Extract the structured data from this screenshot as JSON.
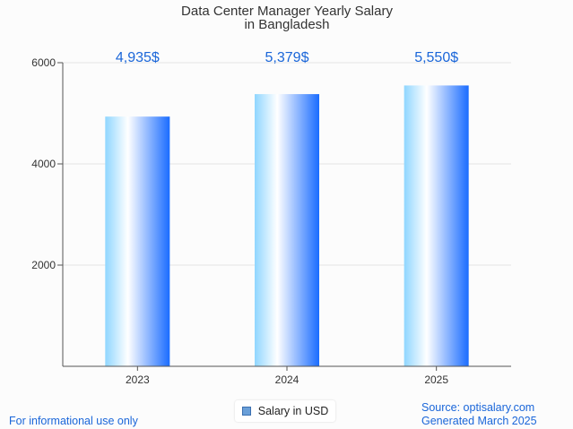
{
  "chart_data": {
    "type": "bar",
    "title": [
      "Data Center Manager Yearly Salary",
      "in Bangladesh"
    ],
    "categories": [
      "2023",
      "2024",
      "2025"
    ],
    "series": [
      {
        "name": "Salary in USD",
        "values": [
          4935,
          5379,
          5550
        ]
      }
    ],
    "data_labels": [
      "4,935$",
      "5,379$",
      "5,550$"
    ],
    "y_ticks": [
      2000,
      4000,
      6000
    ],
    "ylim": [
      0,
      6000
    ],
    "grid": true,
    "legend_position": "bottom-center",
    "colors": {
      "bar_edge": "#1a6cff",
      "bar_light": "#9fdcff",
      "label": "#1a66d9"
    }
  },
  "footer": {
    "left": "For informational use only",
    "source": "Source: optisalary.com",
    "generated": "Generated March 2025"
  }
}
